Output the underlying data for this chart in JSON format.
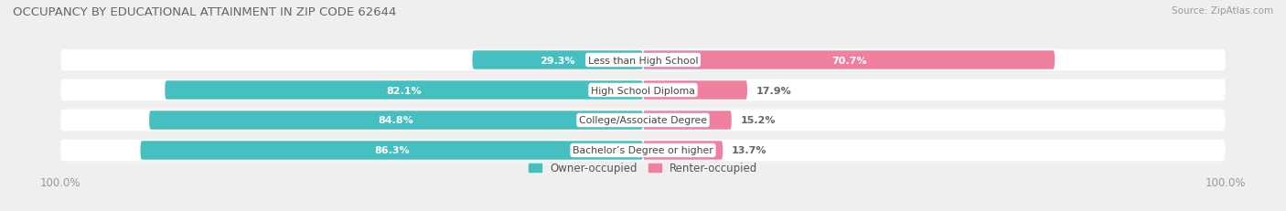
{
  "title": "OCCUPANCY BY EDUCATIONAL ATTAINMENT IN ZIP CODE 62644",
  "source": "Source: ZipAtlas.com",
  "categories": [
    "Less than High School",
    "High School Diploma",
    "College/Associate Degree",
    "Bachelor’s Degree or higher"
  ],
  "owner_pct": [
    29.3,
    82.1,
    84.8,
    86.3
  ],
  "renter_pct": [
    70.7,
    17.9,
    15.2,
    13.7
  ],
  "owner_color": "#45BFBF",
  "renter_color": "#F080A0",
  "bg_color": "#EFEFEF",
  "row_bg_color": "#FFFFFF",
  "title_color": "#666666",
  "label_white": "#FFFFFF",
  "label_dark": "#666666",
  "axis_label_color": "#999999",
  "legend_owner": "Owner-occupied",
  "legend_renter": "Renter-occupied"
}
